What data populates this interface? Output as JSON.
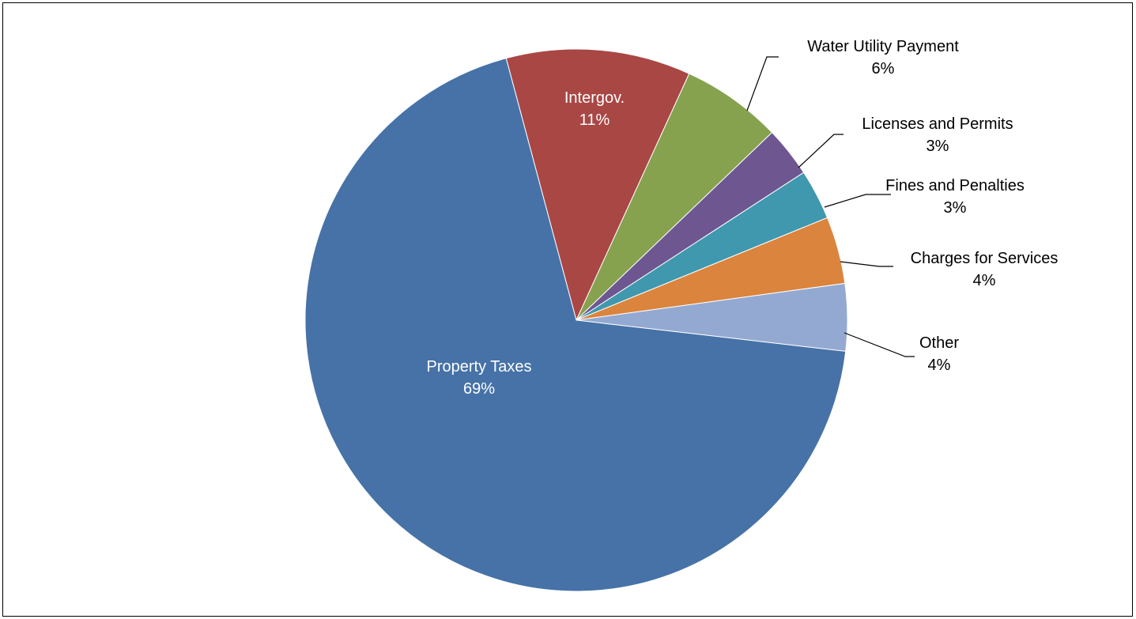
{
  "chart_data": {
    "type": "pie",
    "title": "",
    "slices": [
      {
        "label": "Intergov.",
        "value": 11,
        "value_label": "11%",
        "color": "#A94745",
        "label_inside": true
      },
      {
        "label": "Water Utility Payment",
        "value": 6,
        "value_label": "6%",
        "color": "#86A24F",
        "label_inside": false
      },
      {
        "label": "Licenses and Permits",
        "value": 3,
        "value_label": "3%",
        "color": "#6E5790",
        "label_inside": false
      },
      {
        "label": "Fines and Penalties",
        "value": 3,
        "value_label": "3%",
        "color": "#3F98AE",
        "label_inside": false
      },
      {
        "label": "Charges for Services",
        "value": 4,
        "value_label": "4%",
        "color": "#DB843D",
        "label_inside": false
      },
      {
        "label": "Other",
        "value": 4,
        "value_label": "4%",
        "color": "#94A9D1",
        "label_inside": false
      },
      {
        "label": "Property Taxes",
        "value": 69,
        "value_label": "69%",
        "color": "#4672A7",
        "label_inside": true
      }
    ],
    "start_angle_deg": -15,
    "direction": "clockwise",
    "inside_label_color": "#FFFFFF",
    "outside_label_color": "#000000",
    "leader_line_color": "#000000",
    "legend": "none"
  }
}
